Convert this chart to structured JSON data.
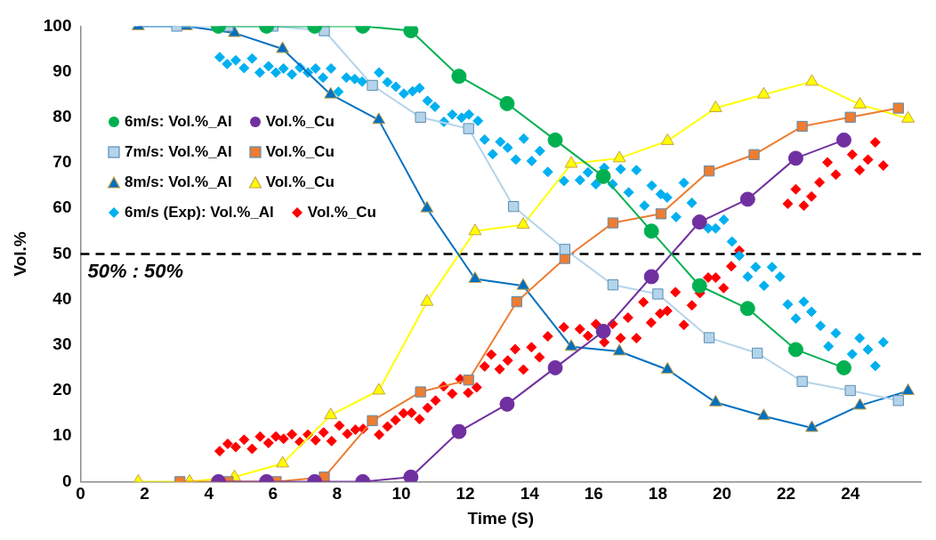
{
  "chart_data": {
    "type": "line",
    "xlabel": "Time (S)",
    "ylabel": "Vol.%",
    "xlim": [
      0,
      26.2
    ],
    "xticks": [
      0,
      2,
      4,
      6,
      8,
      10,
      12,
      14,
      16,
      18,
      20,
      22,
      24
    ],
    "ylim": [
      0,
      100
    ],
    "yticks": [
      0,
      10,
      20,
      30,
      40,
      50,
      60,
      70,
      80,
      90,
      100
    ],
    "grid": false,
    "legend": "left",
    "ref_lines": [
      {
        "axis": "y",
        "value": 50,
        "label": "50% : 50%",
        "color": "#000000",
        "line_style": "dashed"
      }
    ],
    "series": [
      {
        "name": "6m/s: Vol.%_Al",
        "color": "#00b050",
        "marker": "circle",
        "x": [
          4.3,
          5.8,
          7.3,
          8.8,
          10.3,
          11.8,
          13.3,
          14.8,
          16.3,
          17.8,
          19.3,
          20.8,
          22.3,
          23.8
        ],
        "values": [
          100,
          100,
          100,
          100,
          99,
          89,
          83,
          75,
          67,
          55,
          43,
          38,
          29,
          25
        ]
      },
      {
        "name": "Vol.%_Cu",
        "color": "#7030a0",
        "marker": "circle",
        "x": [
          4.3,
          5.8,
          7.3,
          8.8,
          10.3,
          11.8,
          13.3,
          14.8,
          16.3,
          17.8,
          19.3,
          20.8,
          22.3,
          23.8
        ],
        "values": [
          0,
          0,
          0,
          0,
          1,
          11,
          17,
          25,
          33,
          45,
          57,
          62,
          71,
          75
        ]
      },
      {
        "name": "7m/s: Vol.%_Al",
        "color": "#b4d4ea",
        "marker": "square",
        "x": [
          3.0,
          4.6,
          6.0,
          7.6,
          9.1,
          10.6,
          12.1,
          13.5,
          15.1,
          16.6,
          18.0,
          19.6,
          21.1,
          22.5,
          24.0,
          25.5
        ],
        "values": [
          100,
          100,
          100,
          99,
          87,
          80,
          77.5,
          60.4,
          51,
          43.2,
          41.2,
          31.6,
          28.2,
          22,
          20,
          17.8
        ]
      },
      {
        "name": "Vol.%_Cu",
        "color": "#ed7d31",
        "marker": "square",
        "x": [
          3.1,
          4.6,
          6.1,
          7.6,
          9.1,
          10.6,
          12.1,
          13.6,
          15.1,
          16.6,
          18.1,
          19.6,
          21.0,
          22.5,
          24.0,
          25.5
        ],
        "values": [
          0,
          0,
          0,
          1,
          13.4,
          19.7,
          22.3,
          39.5,
          49,
          56.8,
          58.8,
          68.2,
          71.8,
          78,
          80,
          82
        ]
      },
      {
        "name": "8m/s: Vol.%_Al",
        "color": "#0070c0",
        "marker": "triangle",
        "x": [
          1.8,
          3.3,
          4.8,
          6.3,
          7.8,
          9.3,
          10.8,
          12.3,
          13.8,
          15.3,
          16.8,
          18.3,
          19.8,
          21.3,
          22.8,
          24.3,
          25.8
        ],
        "values": [
          100,
          100,
          98.5,
          95,
          85,
          79.4,
          60,
          44.5,
          43,
          29.6,
          28.6,
          24.6,
          17.4,
          14.4,
          11.8,
          16.7,
          19.9
        ]
      },
      {
        "name": "Vol.%_Cu",
        "color": "#ffff00",
        "marker": "triangle",
        "x": [
          1.8,
          3.4,
          4.8,
          6.3,
          7.8,
          9.3,
          10.8,
          12.3,
          13.8,
          15.3,
          16.8,
          18.3,
          19.8,
          21.3,
          22.8,
          24.3,
          25.8
        ],
        "values": [
          0,
          0,
          1,
          4,
          14.6,
          20,
          39.5,
          55,
          56.4,
          69.8,
          71,
          74.8,
          82,
          85,
          87.8,
          82.8,
          79.7
        ]
      },
      {
        "name": "6m/s (Exp): Vol.%_Al",
        "type": "scatter",
        "color": "#00b0f0",
        "marker": "diamond",
        "x": [
          4.34,
          4.57,
          4.84,
          5.1,
          5.35,
          5.59,
          5.86,
          6.09,
          6.33,
          6.59,
          6.84,
          7.09,
          7.33,
          7.56,
          7.81,
          8.04,
          8.29,
          8.55,
          8.78,
          9.31,
          9.57,
          9.83,
          10.08,
          10.35,
          10.57,
          10.82,
          11.05,
          11.33,
          11.59,
          11.88,
          12.11,
          12.39,
          12.6,
          12.85,
          13.09,
          13.32,
          13.57,
          13.82,
          14.07,
          14.32,
          14.57,
          15.07,
          15.57,
          15.82,
          16.07,
          16.33,
          16.59,
          16.84,
          17.09,
          17.33,
          17.58,
          17.81,
          18.09,
          18.29,
          18.57,
          18.81,
          19.06,
          19.57,
          19.8,
          20.06,
          20.31,
          20.54,
          20.8,
          21.05,
          21.31,
          21.56,
          21.81,
          22.05,
          22.3,
          22.55,
          22.79,
          23.07,
          23.32,
          23.55,
          24.06,
          24.29,
          24.55,
          24.78,
          25.03
        ],
        "values": [
          93.2,
          91.7,
          92.5,
          90.8,
          92.9,
          89.8,
          91.2,
          89.8,
          90.7,
          89.4,
          90.9,
          89.8,
          90.7,
          88.7,
          90.7,
          85.6,
          88.7,
          88.4,
          87.8,
          89.8,
          87.7,
          86.7,
          85.2,
          85.7,
          86.4,
          83.6,
          82.3,
          79,
          80.6,
          79.9,
          80.6,
          79.2,
          75.1,
          71.9,
          74.6,
          73.3,
          70.7,
          75.3,
          70.4,
          72.6,
          68,
          66,
          66.2,
          67.9,
          65.3,
          68.9,
          65.3,
          68.6,
          63.5,
          68.4,
          60.6,
          65,
          63.1,
          62.4,
          58.1,
          65.6,
          61.2,
          55.6,
          55.6,
          57.5,
          52.7,
          49.6,
          45,
          47.1,
          43,
          47.1,
          45,
          38.9,
          35.8,
          39.5,
          37.3,
          34.2,
          29.7,
          32.6,
          28,
          31.5,
          29,
          25.4,
          30.6
        ]
      },
      {
        "name": "Vol.%_Cu",
        "type": "scatter",
        "color": "#ff0000",
        "marker": "diamond",
        "x": [
          4.34,
          4.59,
          4.84,
          5.1,
          5.35,
          5.6,
          5.86,
          6.09,
          6.33,
          6.59,
          6.84,
          7.09,
          7.33,
          7.58,
          7.83,
          8.07,
          8.32,
          8.57,
          8.81,
          9.31,
          9.57,
          9.82,
          10.07,
          10.32,
          10.57,
          10.82,
          11.07,
          11.32,
          11.59,
          11.84,
          12.09,
          12.35,
          12.6,
          12.81,
          13.07,
          13.32,
          13.55,
          13.81,
          14.06,
          14.31,
          14.57,
          15.07,
          15.57,
          15.82,
          16.07,
          16.33,
          16.59,
          16.84,
          17.07,
          17.33,
          17.55,
          17.79,
          18.07,
          18.29,
          18.55,
          18.81,
          19.06,
          19.31,
          19.57,
          19.8,
          20.05,
          20.29,
          20.54,
          22.05,
          22.3,
          22.55,
          22.79,
          23.04,
          23.29,
          23.55,
          24.06,
          24.29,
          24.55,
          24.78,
          25.03
        ],
        "values": [
          6.7,
          8.3,
          7.6,
          9.2,
          7.2,
          9.9,
          8.5,
          9.9,
          9.4,
          10.4,
          8.7,
          10.3,
          9.1,
          10.8,
          8.9,
          12.3,
          10.5,
          11.4,
          11.6,
          10.3,
          12.1,
          13.5,
          15,
          15.1,
          13.7,
          16.2,
          17.8,
          20.9,
          19.3,
          22.5,
          19.5,
          20.7,
          25.3,
          27.9,
          24.7,
          26.6,
          29.1,
          24.6,
          29.5,
          27.3,
          31.9,
          33.9,
          33.5,
          32,
          34.6,
          30.6,
          34.6,
          31.5,
          36,
          31.5,
          39.4,
          34.9,
          36.9,
          37.5,
          41.6,
          34.4,
          38.7,
          41.4,
          44.8,
          44.8,
          42.5,
          47.3,
          50.7,
          61,
          64.2,
          60.6,
          62.6,
          65.7,
          70.1,
          67.4,
          71.8,
          68.4,
          70.7,
          74.5,
          69.4
        ]
      }
    ]
  }
}
